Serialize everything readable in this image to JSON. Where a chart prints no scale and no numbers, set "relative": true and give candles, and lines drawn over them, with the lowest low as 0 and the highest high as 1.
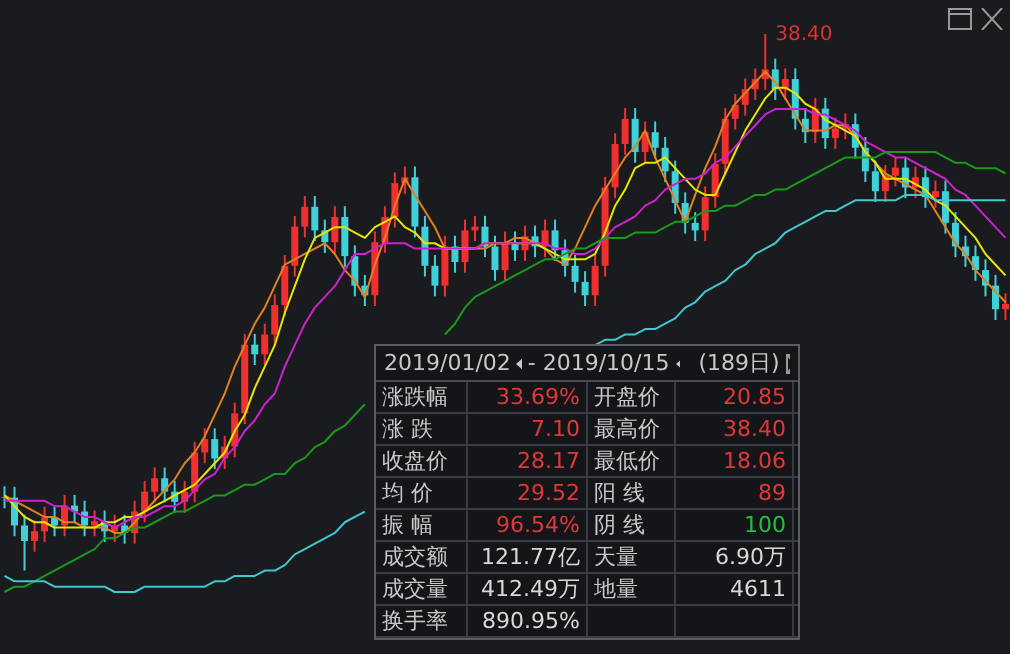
{
  "chart_data": {
    "type": "candlestick",
    "relative": true,
    "categories": [
      null,
      null,
      null,
      null,
      null,
      null,
      null,
      null,
      null,
      null,
      null,
      null,
      null,
      null,
      null,
      null,
      null,
      null,
      null,
      null,
      null,
      null,
      null,
      null,
      null,
      null,
      null,
      null,
      null,
      null,
      null,
      null,
      null,
      null,
      null,
      null,
      null,
      null,
      null,
      null,
      null,
      null,
      null,
      null,
      null,
      null,
      null,
      null,
      null,
      null,
      null,
      null,
      null,
      null,
      null,
      null,
      null,
      null,
      null,
      null,
      null,
      null,
      null,
      null,
      null,
      null,
      null,
      null,
      null,
      null,
      null,
      null,
      null,
      null,
      null,
      null,
      null,
      null,
      null,
      null,
      null,
      null,
      null,
      null,
      null,
      null,
      null,
      null,
      null,
      null,
      null,
      null,
      null,
      null,
      null,
      null,
      null,
      null,
      null,
      null,
      null
    ],
    "ohlc": [
      [
        0.137,
        0.157,
        0.116,
        0.136
      ],
      [
        0.136,
        0.156,
        0.064,
        0.084
      ],
      [
        0.084,
        0.104,
        0,
        0.055
      ],
      [
        0.055,
        0.093,
        0.035,
        0.073
      ],
      [
        0.073,
        0.119,
        0.053,
        0.099
      ],
      [
        0.099,
        0.119,
        0.064,
        0.084
      ],
      [
        0.084,
        0.141,
        0.064,
        0.121
      ],
      [
        0.121,
        0.141,
        0.09,
        0.11
      ],
      [
        0.11,
        0.13,
        0.064,
        0.084
      ],
      [
        0.084,
        0.112,
        0.064,
        0.092
      ],
      [
        0.092,
        0.112,
        0.053,
        0.073
      ],
      [
        0.073,
        0.104,
        0.053,
        0.084
      ],
      [
        0.084,
        0.104,
        0.05,
        0.07
      ],
      [
        0.07,
        0.13,
        0.05,
        0.11
      ],
      [
        0.11,
        0.167,
        0.09,
        0.147
      ],
      [
        0.147,
        0.192,
        0.127,
        0.172
      ],
      [
        0.172,
        0.192,
        0.127,
        0.147
      ],
      [
        0.147,
        0.167,
        0.108,
        0.128
      ],
      [
        0.128,
        0.167,
        0.108,
        0.147
      ],
      [
        0.147,
        0.24,
        0.127,
        0.22
      ],
      [
        0.22,
        0.265,
        0.2,
        0.245
      ],
      [
        0.245,
        0.265,
        0.189,
        0.209
      ],
      [
        0.209,
        0.251,
        0.189,
        0.231
      ],
      [
        0.231,
        0.313,
        0.211,
        0.293
      ],
      [
        0.293,
        0.441,
        0.273,
        0.421
      ],
      [
        0.421,
        0.441,
        0.383,
        0.403
      ],
      [
        0.403,
        0.46,
        0.383,
        0.44
      ],
      [
        0.44,
        0.515,
        0.42,
        0.495
      ],
      [
        0.495,
        0.588,
        0.475,
        0.568
      ],
      [
        0.568,
        0.661,
        0.548,
        0.641
      ],
      [
        0.641,
        0.698,
        0.621,
        0.678
      ],
      [
        0.678,
        0.698,
        0.614,
        0.634
      ],
      [
        0.634,
        0.654,
        0.592,
        0.612
      ],
      [
        0.612,
        0.679,
        0.592,
        0.659
      ],
      [
        0.659,
        0.679,
        0.566,
        0.586
      ],
      [
        0.586,
        0.606,
        0.511,
        0.531
      ],
      [
        0.531,
        0.551,
        0.493,
        0.513
      ],
      [
        0.513,
        0.632,
        0.493,
        0.612
      ],
      [
        0.612,
        0.679,
        0.592,
        0.659
      ],
      [
        0.659,
        0.742,
        0.639,
        0.722
      ],
      [
        0.722,
        0.753,
        0.702,
        0.733
      ],
      [
        0.733,
        0.753,
        0.621,
        0.641
      ],
      [
        0.641,
        0.661,
        0.548,
        0.568
      ],
      [
        0.568,
        0.588,
        0.511,
        0.531
      ],
      [
        0.531,
        0.624,
        0.511,
        0.604
      ],
      [
        0.604,
        0.624,
        0.555,
        0.575
      ],
      [
        0.575,
        0.654,
        0.555,
        0.634
      ],
      [
        0.634,
        0.661,
        0.614,
        0.641
      ],
      [
        0.641,
        0.661,
        0.584,
        0.604
      ],
      [
        0.604,
        0.624,
        0.54,
        0.56
      ],
      [
        0.56,
        0.632,
        0.54,
        0.612
      ],
      [
        0.612,
        0.632,
        0.577,
        0.597
      ],
      [
        0.597,
        0.643,
        0.577,
        0.623
      ],
      [
        0.623,
        0.643,
        0.584,
        0.604
      ],
      [
        0.604,
        0.654,
        0.584,
        0.634
      ],
      [
        0.634,
        0.654,
        0.577,
        0.597
      ],
      [
        0.597,
        0.617,
        0.548,
        0.568
      ],
      [
        0.568,
        0.588,
        0.518,
        0.538
      ],
      [
        0.538,
        0.558,
        0.493,
        0.513
      ],
      [
        0.513,
        0.588,
        0.493,
        0.568
      ],
      [
        0.568,
        0.734,
        0.548,
        0.714
      ],
      [
        0.714,
        0.815,
        0.694,
        0.795
      ],
      [
        0.795,
        0.862,
        0.775,
        0.842
      ],
      [
        0.842,
        0.862,
        0.76,
        0.78
      ],
      [
        0.78,
        0.837,
        0.76,
        0.817
      ],
      [
        0.817,
        0.837,
        0.768,
        0.788
      ],
      [
        0.788,
        0.808,
        0.724,
        0.744
      ],
      [
        0.744,
        0.764,
        0.665,
        0.685
      ],
      [
        0.685,
        0.705,
        0.628,
        0.648
      ],
      [
        0.648,
        0.668,
        0.614,
        0.634
      ],
      [
        0.634,
        0.716,
        0.614,
        0.696
      ],
      [
        0.696,
        0.778,
        0.676,
        0.758
      ],
      [
        0.758,
        0.862,
        0.738,
        0.842
      ],
      [
        0.842,
        0.888,
        0.822,
        0.868
      ],
      [
        0.868,
        0.917,
        0.848,
        0.897
      ],
      [
        0.897,
        0.936,
        0.877,
        0.916
      ],
      [
        0.916,
        1,
        0.896,
        0.934
      ],
      [
        0.934,
        0.954,
        0.877,
        0.897
      ],
      [
        0.897,
        0.936,
        0.877,
        0.916
      ],
      [
        0.916,
        0.936,
        0.822,
        0.842
      ],
      [
        0.842,
        0.862,
        0.797,
        0.817
      ],
      [
        0.817,
        0.881,
        0.797,
        0.861
      ],
      [
        0.861,
        0.881,
        0.786,
        0.806
      ],
      [
        0.806,
        0.844,
        0.786,
        0.824
      ],
      [
        0.824,
        0.852,
        0.804,
        0.832
      ],
      [
        0.832,
        0.852,
        0.768,
        0.788
      ],
      [
        0.788,
        0.808,
        0.724,
        0.744
      ],
      [
        0.744,
        0.764,
        0.687,
        0.707
      ],
      [
        0.707,
        0.756,
        0.687,
        0.736
      ],
      [
        0.736,
        0.771,
        0.716,
        0.751
      ],
      [
        0.751,
        0.771,
        0.694,
        0.714
      ],
      [
        0.714,
        0.753,
        0.694,
        0.733
      ],
      [
        0.733,
        0.753,
        0.676,
        0.696
      ],
      [
        0.696,
        0.727,
        0.676,
        0.707
      ],
      [
        0.707,
        0.727,
        0.628,
        0.648
      ],
      [
        0.648,
        0.668,
        0.584,
        0.604
      ],
      [
        0.604,
        0.624,
        0.566,
        0.586
      ],
      [
        0.586,
        0.606,
        0.54,
        0.56
      ],
      [
        0.56,
        0.58,
        0.511,
        0.531
      ],
      [
        0.531,
        0.551,
        0.467,
        0.487
      ],
      [
        0.487,
        0.517,
        0.467,
        0.497
      ]
    ],
    "colors": [
      "#40d0d8",
      "#40d0d8",
      "#40d0d8",
      "#f03030",
      "#f03030",
      "#40d0d8",
      "#f03030",
      "#40d0d8",
      "#40d0d8",
      "#f03030",
      "#40d0d8",
      "#f03030",
      "#40d0d8",
      "#f03030",
      "#f03030",
      "#f03030",
      "#40d0d8",
      "#40d0d8",
      "#f03030",
      "#f03030",
      "#f03030",
      "#40d0d8",
      "#f03030",
      "#f03030",
      "#f03030",
      "#40d0d8",
      "#f03030",
      "#f03030",
      "#f03030",
      "#f03030",
      "#f03030",
      "#40d0d8",
      "#40d0d8",
      "#f03030",
      "#40d0d8",
      "#40d0d8",
      "#40d0d8",
      "#f03030",
      "#f03030",
      "#f03030",
      "#f03030",
      "#40d0d8",
      "#40d0d8",
      "#40d0d8",
      "#f03030",
      "#40d0d8",
      "#f03030",
      "#f03030",
      "#40d0d8",
      "#40d0d8",
      "#f03030",
      "#40d0d8",
      "#f03030",
      "#40d0d8",
      "#f03030",
      "#40d0d8",
      "#40d0d8",
      "#40d0d8",
      "#40d0d8",
      "#f03030",
      "#f03030",
      "#f03030",
      "#f03030",
      "#40d0d8",
      "#f03030",
      "#40d0d8",
      "#40d0d8",
      "#40d0d8",
      "#40d0d8",
      "#40d0d8",
      "#f03030",
      "#f03030",
      "#f03030",
      "#f03030",
      "#f03030",
      "#f03030",
      "#f03030",
      "#40d0d8",
      "#f03030",
      "#40d0d8",
      "#40d0d8",
      "#f03030",
      "#40d0d8",
      "#f03030",
      "#f03030",
      "#40d0d8",
      "#40d0d8",
      "#40d0d8",
      "#f03030",
      "#f03030",
      "#40d0d8",
      "#f03030",
      "#40d0d8",
      "#f03030",
      "#40d0d8",
      "#40d0d8",
      "#40d0d8",
      "#40d0d8",
      "#40d0d8",
      "#40d0d8",
      "#f03030"
    ],
    "series": [
      {
        "type": "line",
        "color": "#e08020",
        "values": [
          0.14,
          0.13,
          0.12,
          0.11,
          0.1,
          0.1,
          0.09,
          0.09,
          0.08,
          0.08,
          0.08,
          0.07,
          0.07,
          0.09,
          0.11,
          0.13,
          0.15,
          0.17,
          0.2,
          0.22,
          0.25,
          0.29,
          0.33,
          0.38,
          0.42,
          0.46,
          0.49,
          0.53,
          0.57,
          0.58,
          0.59,
          0.6,
          0.61,
          0.59,
          0.56,
          0.54,
          0.51,
          0.57,
          0.62,
          0.68,
          0.73,
          0.7,
          0.67,
          0.64,
          0.6,
          0.6,
          0.6,
          0.6,
          0.6,
          0.61,
          0.61,
          0.62,
          0.62,
          0.61,
          0.6,
          0.58,
          0.57,
          0.6,
          0.64,
          0.68,
          0.71,
          0.74,
          0.77,
          0.79,
          0.82,
          0.77,
          0.73,
          0.69,
          0.65,
          0.7,
          0.75,
          0.79,
          0.84,
          0.87,
          0.89,
          0.91,
          0.93,
          0.91,
          0.88,
          0.85,
          0.82,
          0.82,
          0.82,
          0.83,
          0.83,
          0.81,
          0.78,
          0.76,
          0.74,
          0.73,
          0.72,
          0.71,
          0.7,
          0.67,
          0.64,
          0.61,
          0.59,
          0.56,
          0.54,
          0.52,
          0.5
        ]
      },
      {
        "type": "line",
        "color": "#e6e600",
        "values": [
          0.14,
          0.12,
          0.1,
          0.09,
          0.09,
          0.08,
          0.08,
          0.08,
          0.08,
          0.08,
          0.09,
          0.09,
          0.1,
          0.1,
          0.11,
          0.12,
          0.13,
          0.14,
          0.15,
          0.16,
          0.18,
          0.2,
          0.22,
          0.26,
          0.29,
          0.34,
          0.38,
          0.42,
          0.48,
          0.53,
          0.58,
          0.62,
          0.63,
          0.64,
          0.64,
          0.63,
          0.62,
          0.64,
          0.65,
          0.66,
          0.64,
          0.63,
          0.61,
          0.61,
          0.6,
          0.6,
          0.6,
          0.6,
          0.61,
          0.61,
          0.61,
          0.61,
          0.61,
          0.61,
          0.6,
          0.59,
          0.58,
          0.58,
          0.58,
          0.59,
          0.63,
          0.68,
          0.71,
          0.75,
          0.76,
          0.76,
          0.77,
          0.75,
          0.73,
          0.71,
          0.7,
          0.7,
          0.74,
          0.78,
          0.82,
          0.85,
          0.88,
          0.9,
          0.9,
          0.89,
          0.87,
          0.86,
          0.84,
          0.83,
          0.82,
          0.81,
          0.78,
          0.76,
          0.73,
          0.73,
          0.73,
          0.72,
          0.71,
          0.69,
          0.68,
          0.66,
          0.64,
          0.62,
          0.59,
          0.57,
          0.55
        ]
      },
      {
        "type": "line",
        "color": "#d020d0",
        "values": [
          0.13,
          0.13,
          0.13,
          0.13,
          0.13,
          0.12,
          0.12,
          0.11,
          0.1,
          0.1,
          0.09,
          0.08,
          0.09,
          0.1,
          0.1,
          0.11,
          0.12,
          0.12,
          0.13,
          0.15,
          0.17,
          0.18,
          0.21,
          0.23,
          0.26,
          0.28,
          0.31,
          0.33,
          0.38,
          0.42,
          0.46,
          0.49,
          0.51,
          0.53,
          0.56,
          0.59,
          0.59,
          0.6,
          0.61,
          0.61,
          0.61,
          0.6,
          0.6,
          0.6,
          0.6,
          0.6,
          0.6,
          0.6,
          0.61,
          0.61,
          0.61,
          0.61,
          0.61,
          0.61,
          0.61,
          0.6,
          0.6,
          0.59,
          0.59,
          0.6,
          0.62,
          0.64,
          0.65,
          0.66,
          0.68,
          0.69,
          0.71,
          0.72,
          0.73,
          0.73,
          0.74,
          0.76,
          0.77,
          0.79,
          0.81,
          0.83,
          0.85,
          0.86,
          0.86,
          0.86,
          0.86,
          0.85,
          0.85,
          0.84,
          0.83,
          0.82,
          0.8,
          0.79,
          0.78,
          0.77,
          0.77,
          0.76,
          0.75,
          0.74,
          0.73,
          0.71,
          0.7,
          0.68,
          0.66,
          0.64,
          0.62
        ]
      },
      {
        "type": "line",
        "color": "#1a9a1a",
        "values": [
          -0.04,
          -0.03,
          -0.03,
          -0.02,
          -0.01,
          0,
          0.01,
          0.02,
          0.03,
          0.04,
          0.06,
          0.06,
          0.07,
          0.08,
          0.08,
          0.09,
          0.1,
          0.11,
          0.11,
          0.12,
          0.13,
          0.14,
          0.14,
          0.15,
          0.16,
          0.16,
          0.17,
          0.18,
          0.18,
          0.2,
          0.21,
          0.23,
          0.24,
          0.26,
          0.27,
          0.29,
          0.31,
          null,
          null,
          null,
          null,
          null,
          null,
          null,
          0.44,
          0.46,
          0.49,
          0.51,
          0.52,
          0.53,
          0.54,
          0.55,
          0.56,
          0.57,
          0.58,
          0.58,
          0.59,
          0.6,
          0.6,
          0.61,
          0.62,
          0.62,
          0.62,
          0.63,
          0.63,
          0.63,
          0.64,
          0.65,
          0.65,
          0.66,
          0.67,
          0.67,
          0.68,
          0.68,
          0.69,
          0.7,
          0.7,
          0.71,
          0.71,
          0.72,
          0.73,
          0.74,
          0.75,
          0.76,
          0.77,
          0.77,
          0.77,
          0.77,
          0.78,
          0.78,
          0.78,
          0.78,
          0.78,
          0.78,
          0.77,
          0.76,
          0.76,
          0.75,
          0.75,
          0.75,
          0.74
        ]
      },
      {
        "type": "line",
        "color": "#40c8d0",
        "values": [
          -0.01,
          -0.02,
          -0.02,
          -0.02,
          -0.02,
          -0.03,
          -0.03,
          -0.03,
          -0.03,
          -0.03,
          -0.03,
          -0.04,
          -0.04,
          -0.04,
          -0.03,
          -0.03,
          -0.03,
          -0.03,
          -0.03,
          -0.03,
          -0.03,
          -0.02,
          -0.02,
          -0.01,
          -0.01,
          -0.01,
          0,
          0,
          0.01,
          0.03,
          0.04,
          0.05,
          0.06,
          0.07,
          0.09,
          0.1,
          0.11,
          null,
          null,
          null,
          null,
          null,
          null,
          null,
          null,
          null,
          null,
          null,
          null,
          null,
          null,
          null,
          null,
          null,
          null,
          null,
          null,
          null,
          null,
          0.42,
          0.43,
          0.43,
          0.44,
          0.44,
          0.45,
          0.45,
          0.46,
          0.47,
          0.49,
          0.5,
          0.52,
          0.53,
          0.54,
          0.56,
          0.57,
          0.59,
          0.6,
          0.61,
          0.63,
          0.64,
          0.65,
          0.66,
          0.67,
          0.67,
          0.68,
          0.69,
          0.69,
          0.69,
          0.69,
          0.69,
          0.7,
          0.7,
          0.7,
          0.69,
          0.69,
          0.69,
          0.69,
          0.69,
          0.69,
          0.69,
          0.69
        ]
      }
    ],
    "tick_labels": false,
    "annotations": [
      "38.40",
      "2019/01/02",
      "- 2019/10/15",
      "(189日)",
      "涨跌幅",
      "33.69%",
      "开盘价",
      "20.85",
      "涨  跌",
      "7.10",
      "最高价",
      "38.40",
      "收盘价",
      "28.17",
      "最低价",
      "18.06",
      "均  价",
      "29.52",
      "阳  线",
      "89",
      "振  幅",
      "96.54%",
      "阴  线",
      "100",
      "成交额",
      "121.77亿",
      "天量",
      "6.90万",
      "成交量",
      "412.49万",
      "地量",
      "4611",
      "换手率",
      "890.95%"
    ]
  }
}
